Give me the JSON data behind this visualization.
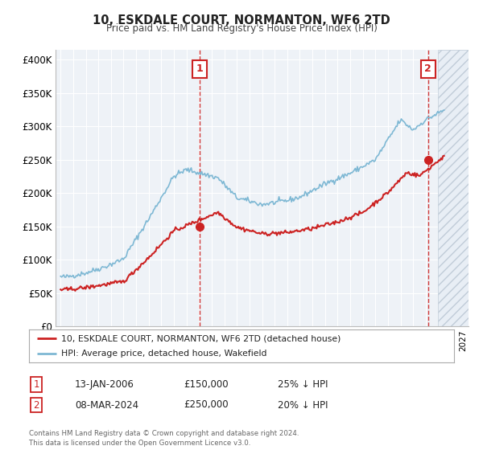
{
  "title": "10, ESKDALE COURT, NORMANTON, WF6 2TD",
  "subtitle": "Price paid vs. HM Land Registry's House Price Index (HPI)",
  "background_color": "#ffffff",
  "plot_bg_color": "#eef2f7",
  "grid_color": "#ffffff",
  "hpi_color": "#7eb8d4",
  "price_color": "#cc2222",
  "sale1_x": 2006.04,
  "sale1_y": 150000,
  "sale2_x": 2024.19,
  "sale2_y": 250000,
  "vline_color": "#cc2222",
  "annotation_box_color": "#cc2222",
  "yticks": [
    0,
    50000,
    100000,
    150000,
    200000,
    250000,
    300000,
    350000,
    400000
  ],
  "ytick_labels": [
    "£0",
    "£50K",
    "£100K",
    "£150K",
    "£200K",
    "£250K",
    "£300K",
    "£350K",
    "£400K"
  ],
  "xmin": 1994.6,
  "xmax": 2027.4,
  "ymin": 0,
  "ymax": 415000,
  "legend_label1": "10, ESKDALE COURT, NORMANTON, WF6 2TD (detached house)",
  "legend_label2": "HPI: Average price, detached house, Wakefield",
  "annotation1_date": "13-JAN-2006",
  "annotation1_price": "£150,000",
  "annotation1_hpi": "25% ↓ HPI",
  "annotation2_date": "08-MAR-2024",
  "annotation2_price": "£250,000",
  "annotation2_hpi": "20% ↓ HPI",
  "footer": "Contains HM Land Registry data © Crown copyright and database right 2024.\nThis data is licensed under the Open Government Licence v3.0."
}
